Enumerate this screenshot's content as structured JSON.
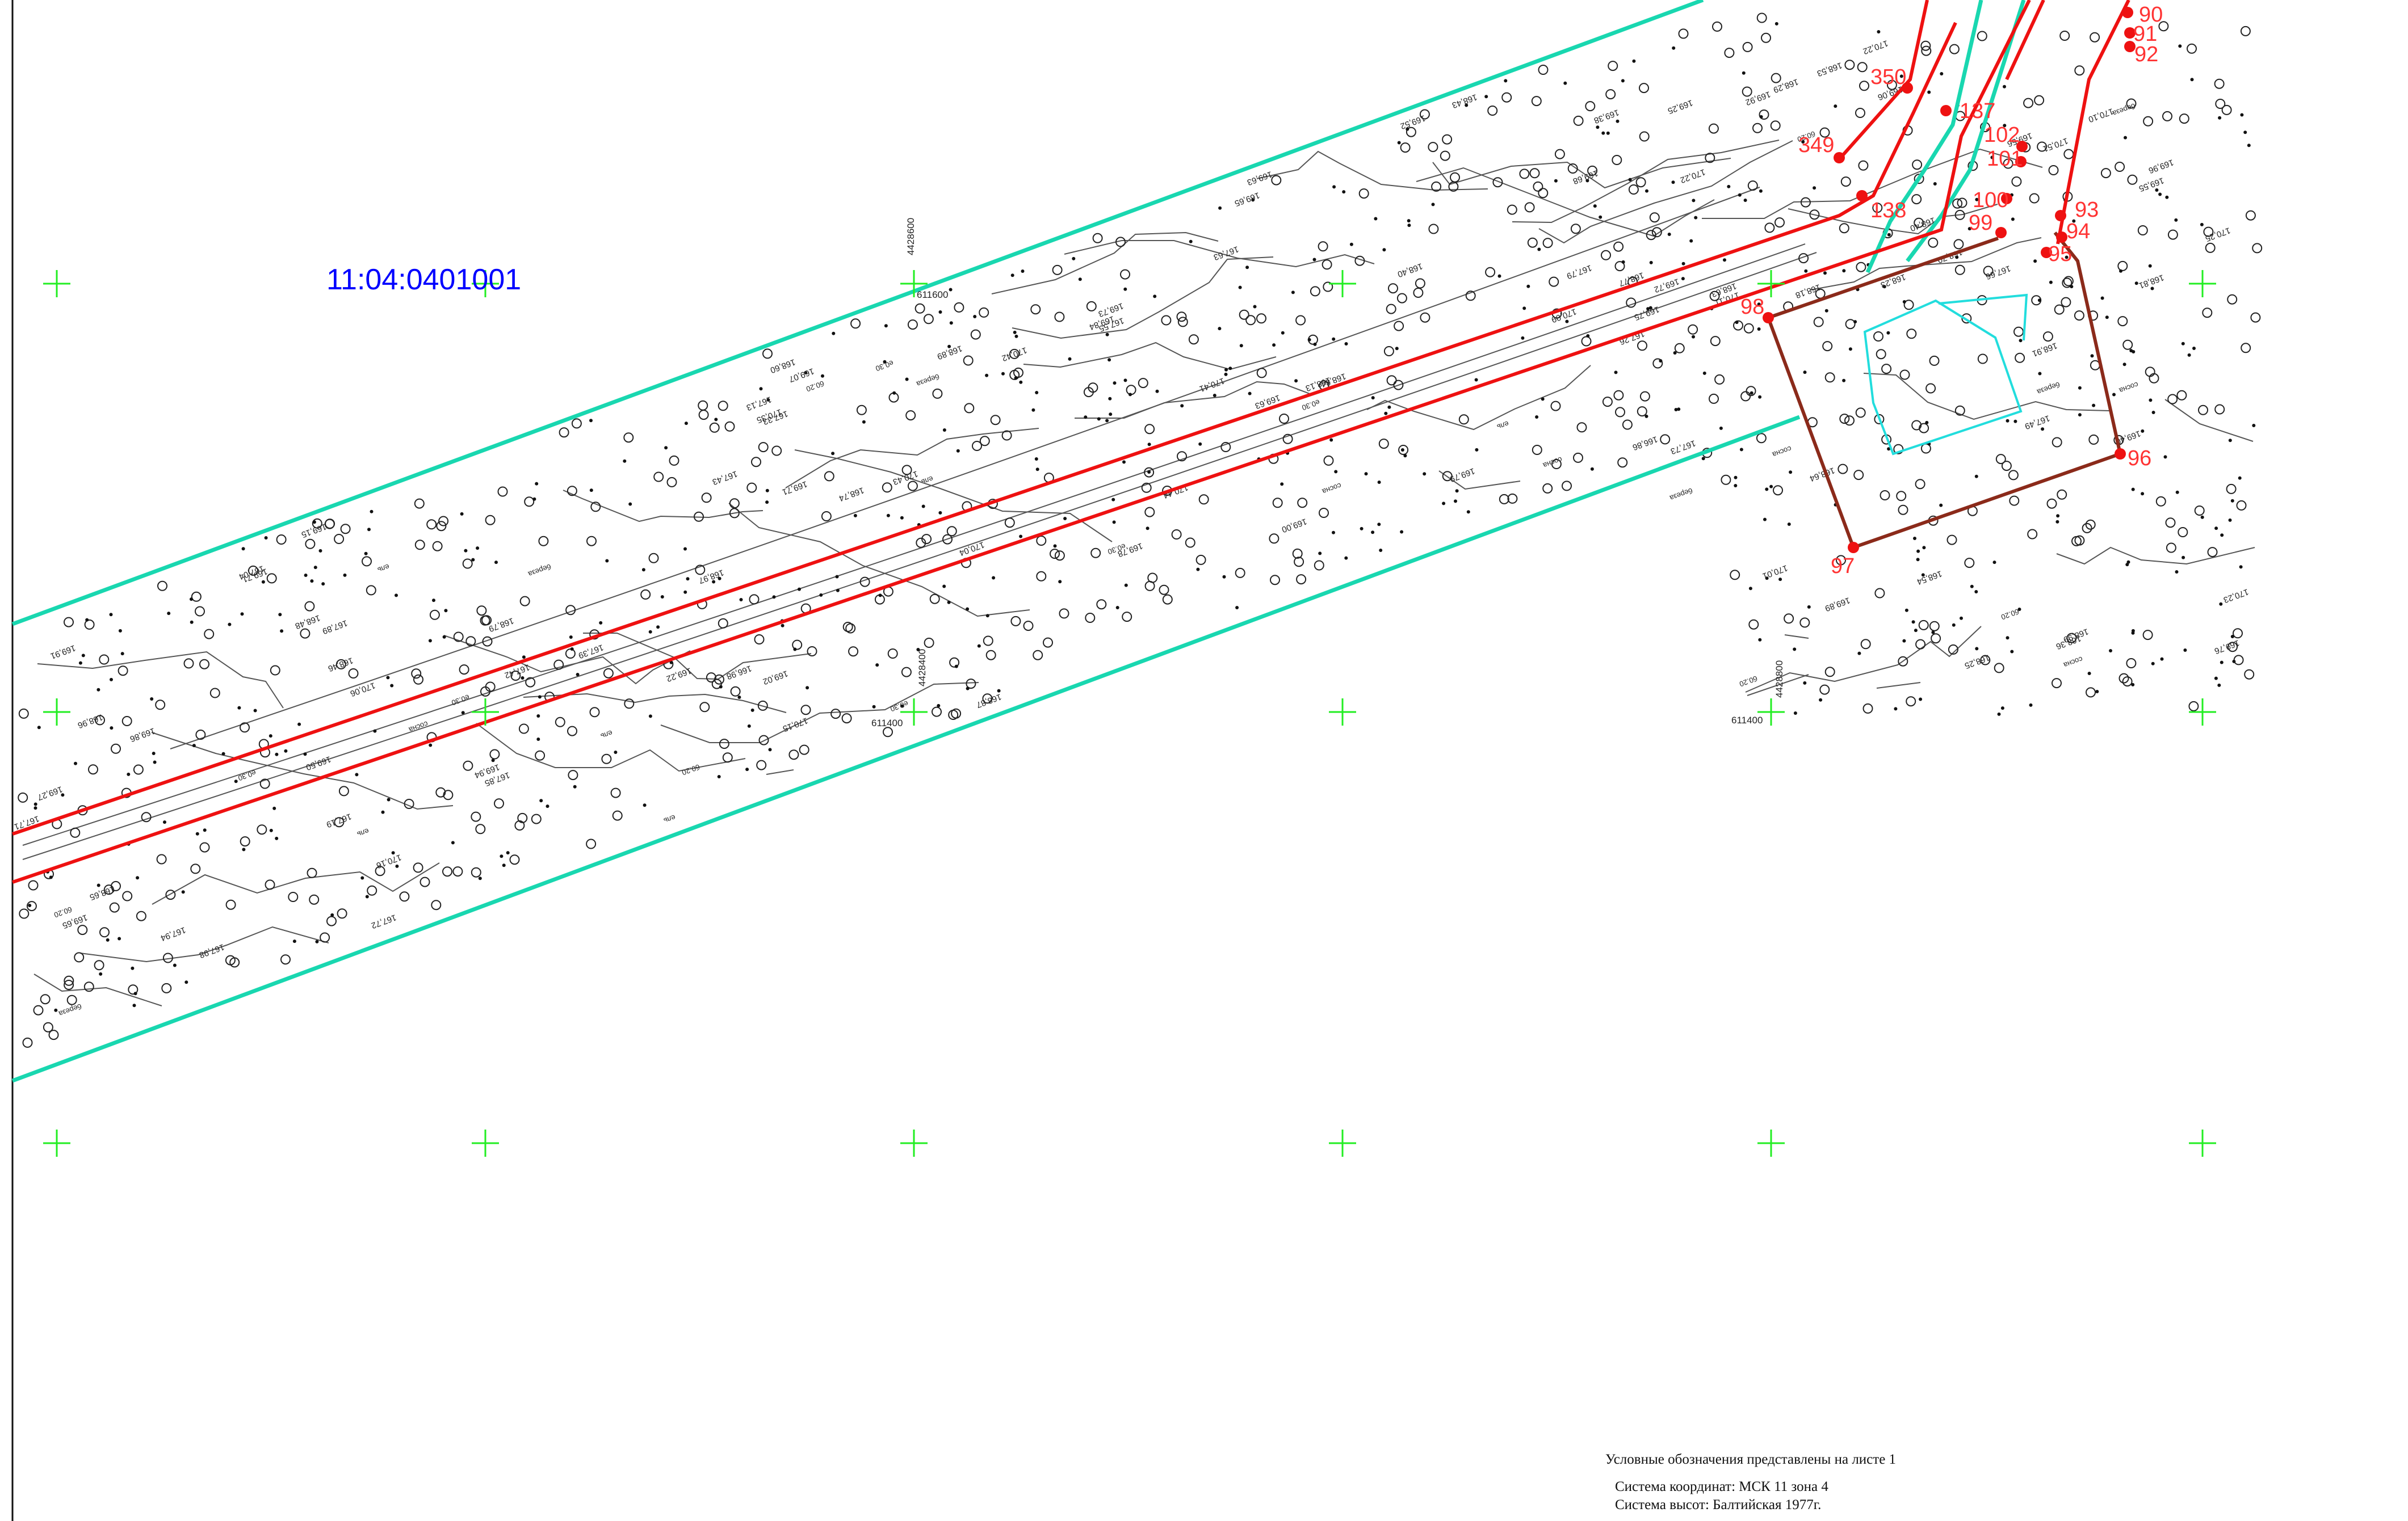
{
  "map": {
    "cadastral_number": "11:04:0401001",
    "notes": {
      "legend_note": "Условные обозначения представлены на листе 1",
      "coordinate_system": "Система координат: МСК 11 зона 4",
      "height_system": "Система высот: Балтийская 1977г."
    },
    "grid_coordinates": [
      "4428600",
      "611600",
      "4428400",
      "611400",
      "4428800",
      "611400"
    ],
    "colors": {
      "zone_boundary": "#19d7b0",
      "red_line": "#ee1111",
      "parcel_boundary": "#8b2a1a",
      "building_outline": "#22dddd",
      "grid_cross": "#22ee22",
      "terrain": "#444444",
      "cadastral_text": "#0000ff"
    },
    "points": [
      {
        "label": "90"
      },
      {
        "label": "91"
      },
      {
        "label": "92"
      },
      {
        "label": "350"
      },
      {
        "label": "137"
      },
      {
        "label": "102"
      },
      {
        "label": "101"
      },
      {
        "label": "349"
      },
      {
        "label": "138"
      },
      {
        "label": "100"
      },
      {
        "label": "99"
      },
      {
        "label": "93"
      },
      {
        "label": "94"
      },
      {
        "label": "95"
      },
      {
        "label": "98"
      },
      {
        "label": "96"
      },
      {
        "label": "97"
      }
    ],
    "elevations": [
      "169,89",
      "169,91",
      "170,11",
      "169,84",
      "170,22",
      "170,51",
      "169,86",
      "169,75",
      "169,76",
      "169,15",
      "169,27",
      "169,71",
      "169,92",
      "169,96",
      "170,23",
      "170,06",
      "169,56",
      "169,07",
      "169,65",
      "168,79",
      "168,96",
      "169,00",
      "168,65",
      "168,89",
      "168,53",
      "168,70",
      "168,74",
      "168,84",
      "168,29",
      "168,18",
      "168,87",
      "168,77",
      "168,91",
      "169,38",
      "168,63",
      "168,13",
      "168,64",
      "168,48",
      "168,40",
      "167,94",
      "167,89",
      "167,79",
      "167,63",
      "167,33",
      "167,13",
      "167,04",
      "166,98",
      "167,43",
      "167,73",
      "167,72",
      "167,42",
      "167,39",
      "167,71",
      "167,55",
      "167,85",
      "167,49",
      "167,26",
      "167,19",
      "166,86",
      "167,66",
      "167,98",
      "168,23",
      "168,46",
      "168,36",
      "168,43",
      "168,54",
      "168,40",
      "168,81",
      "169,02",
      "168,60",
      "168,97",
      "169,22",
      "169,63",
      "169,50",
      "169,25",
      "169,06",
      "168,25",
      "168,99",
      "169,40",
      "169,79",
      "170,10",
      "170,15",
      "170,41",
      "170,44",
      "170,25",
      "170,16",
      "170,01",
      "170,43",
      "170,35",
      "170,42",
      "170,22",
      "169,52",
      "170,04",
      "170,09",
      "169,94",
      "169,68",
      "169,78",
      "169,55",
      "169,71",
      "169,63",
      "169,73",
      "169,72",
      "169,65"
    ],
    "tree_labels": [
      "сосна",
      "береза",
      "ель",
      "е0.30",
      "б0.20"
    ]
  }
}
